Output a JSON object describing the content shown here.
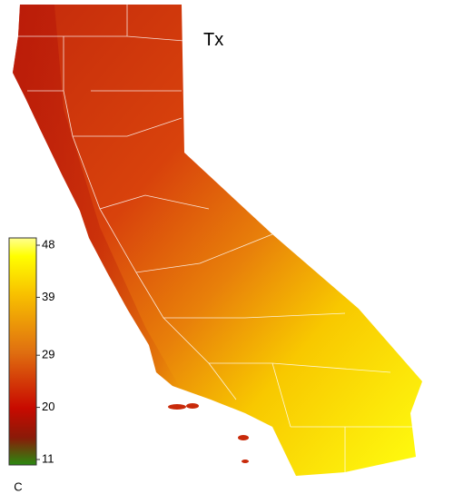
{
  "title": "Tx",
  "colorbar": {
    "ticks": [
      48,
      39,
      29,
      20,
      11
    ],
    "unit": "C"
  }
}
